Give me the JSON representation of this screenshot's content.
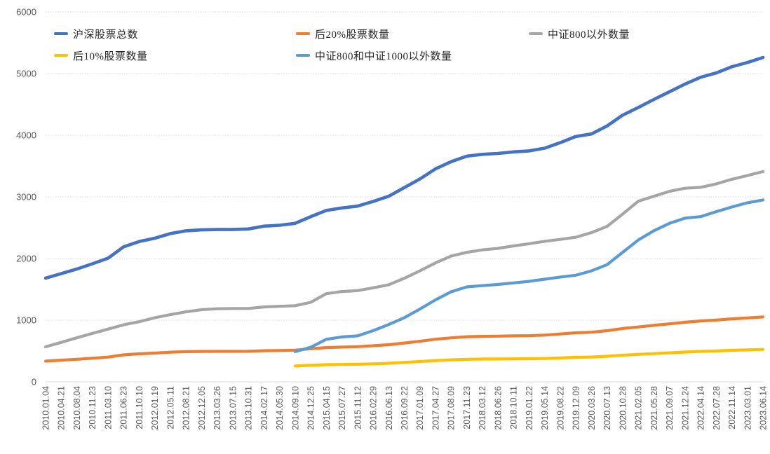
{
  "chart_data": {
    "type": "line",
    "title": "",
    "xlabel": "",
    "ylabel": "",
    "ylim": [
      0,
      6000
    ],
    "y_ticks": [
      0,
      1000,
      2000,
      3000,
      4000,
      5000,
      6000
    ],
    "grid": "horizontal-dotted",
    "legend_position": "top",
    "gridline_color": "#D9D9D9",
    "axis_text_color": "#595959",
    "x_labels": [
      "2010.01.04",
      "2010.04.21",
      "2010.08.04",
      "2010.11.23",
      "2011.03.10",
      "2011.06.23",
      "2011.10.10",
      "2012.01.19",
      "2012.05.11",
      "2012.08.21",
      "2012.12.05",
      "2013.03.26",
      "2013.07.15",
      "2013.10.31",
      "2014.02.17",
      "2014.05.30",
      "2014.09.10",
      "2014.12.25",
      "2015.04.15",
      "2015.07.27",
      "2015.11.12",
      "2016.02.29",
      "2016.06.13",
      "2016.09.22",
      "2017.01.09",
      "2017.04.27",
      "2017.08.09",
      "2017.11.23",
      "2018.03.12",
      "2018.06.26",
      "2018.10.11",
      "2019.01.22",
      "2019.05.14",
      "2019.08.22",
      "2019.12.09",
      "2020.03.26",
      "2020.07.13",
      "2020.10.28",
      "2021.02.05",
      "2021.05.28",
      "2021.09.07",
      "2021.12.24",
      "2022.04.14",
      "2022.07.28",
      "2022.11.14",
      "2023.03.01",
      "2023.06.14"
    ],
    "series": [
      {
        "key": "total-stocks",
        "name": "沪深股票总数",
        "color": "#4472C4",
        "values": [
          1682,
          1755,
          1830,
          1915,
          2005,
          2190,
          2275,
          2330,
          2405,
          2450,
          2465,
          2470,
          2470,
          2480,
          2525,
          2540,
          2570,
          2680,
          2780,
          2820,
          2850,
          2925,
          3010,
          3150,
          3290,
          3455,
          3570,
          3660,
          3690,
          3705,
          3730,
          3745,
          3790,
          3880,
          3980,
          4020,
          4150,
          4325,
          4450,
          4580,
          4705,
          4830,
          4940,
          5010,
          5110,
          5180,
          5260
        ]
      },
      {
        "key": "bottom20pct",
        "name": "后20%股票数量",
        "color": "#ED7D31",
        "values": [
          336,
          351,
          366,
          383,
          401,
          438,
          455,
          466,
          481,
          490,
          493,
          494,
          494,
          496,
          505,
          508,
          514,
          536,
          556,
          564,
          570,
          585,
          602,
          630,
          658,
          691,
          714,
          732,
          738,
          741,
          746,
          749,
          758,
          776,
          796,
          804,
          830,
          865,
          890,
          916,
          941,
          966,
          988,
          1002,
          1022,
          1036,
          1052
        ]
      },
      {
        "key": "ex-csi800",
        "name": "中证800以外数量",
        "color": "#A5A5A5",
        "values": [
          568,
          640,
          715,
          785,
          855,
          925,
          975,
          1040,
          1090,
          1135,
          1170,
          1185,
          1190,
          1190,
          1215,
          1225,
          1235,
          1290,
          1430,
          1465,
          1480,
          1525,
          1575,
          1680,
          1800,
          1930,
          2040,
          2100,
          2140,
          2165,
          2205,
          2240,
          2280,
          2310,
          2345,
          2420,
          2520,
          2720,
          2930,
          3010,
          3090,
          3140,
          3155,
          3210,
          3285,
          3345,
          3410
        ]
      },
      {
        "key": "bottom10pct",
        "name": "后10%股票数量",
        "color": "#FFC000",
        "values": [
          null,
          null,
          null,
          null,
          null,
          null,
          null,
          null,
          null,
          null,
          null,
          null,
          null,
          null,
          null,
          null,
          257,
          268,
          278,
          282,
          285,
          292,
          301,
          315,
          329,
          345,
          357,
          366,
          369,
          370,
          373,
          375,
          379,
          388,
          398,
          402,
          415,
          432,
          445,
          458,
          470,
          483,
          494,
          501,
          511,
          518,
          526
        ]
      },
      {
        "key": "ex-csi800-csi1000",
        "name": "中证800和中证1000以外数量",
        "color": "#5B9BD5",
        "values": [
          null,
          null,
          null,
          null,
          null,
          null,
          null,
          null,
          null,
          null,
          null,
          null,
          null,
          null,
          null,
          null,
          490,
          560,
          690,
          728,
          745,
          830,
          930,
          1040,
          1180,
          1330,
          1460,
          1540,
          1560,
          1580,
          1605,
          1630,
          1665,
          1700,
          1730,
          1800,
          1900,
          2100,
          2300,
          2450,
          2570,
          2655,
          2680,
          2760,
          2835,
          2905,
          2950
        ]
      }
    ]
  }
}
